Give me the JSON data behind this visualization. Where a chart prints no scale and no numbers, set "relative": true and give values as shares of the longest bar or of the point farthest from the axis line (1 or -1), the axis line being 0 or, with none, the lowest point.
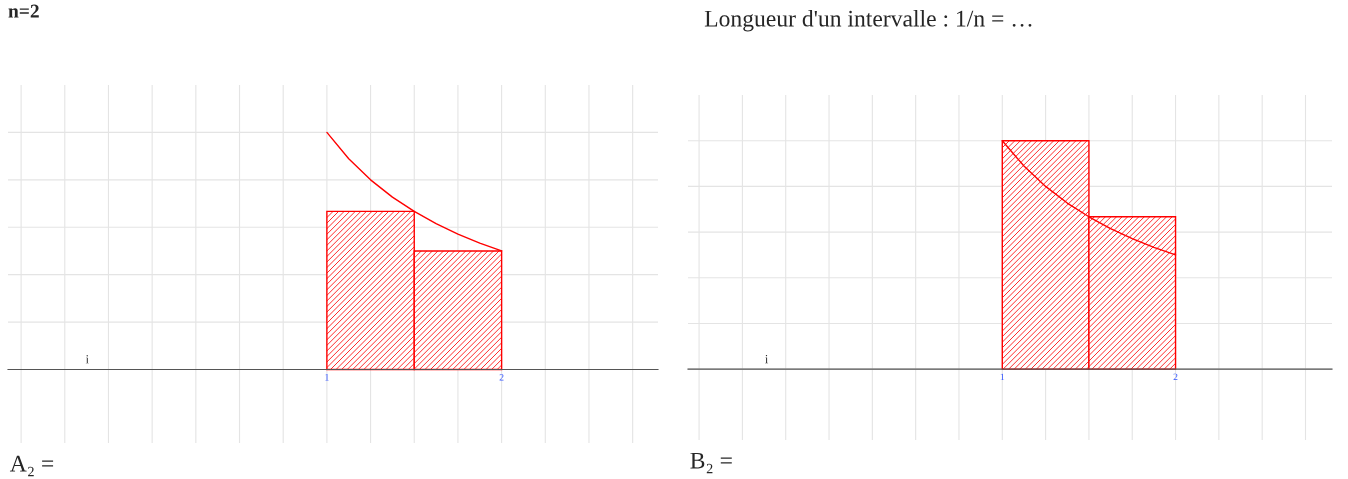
{
  "chart_data": [
    {
      "type": "bar",
      "title": "n=2",
      "relative": true,
      "grid": true,
      "legend": false,
      "xlim": [
        -0.825,
        2.895
      ],
      "xticks": [
        {
          "value": -0.75,
          "label": null
        },
        {
          "value": -0.5,
          "label": null
        },
        {
          "value": -0.25,
          "label": null
        },
        {
          "value": 0,
          "label": null
        },
        {
          "value": 0.25,
          "label": null
        },
        {
          "value": 0.5,
          "label": null
        },
        {
          "value": 0.75,
          "label": null
        },
        1,
        {
          "value": 1.25,
          "label": null
        },
        {
          "value": 1.5,
          "label": null
        },
        {
          "value": 1.75,
          "label": null
        },
        2,
        {
          "value": 2.25,
          "label": null
        },
        {
          "value": 2.5,
          "label": null
        },
        {
          "value": 2.75,
          "label": null
        }
      ],
      "series": [
        {
          "color": "#ff0000",
          "x": [
            1.25,
            1.75
          ],
          "values": [
            0.667,
            0.5
          ]
        },
        {
          "type": "line",
          "color": "#ff0000",
          "x": [
            1,
            1.125,
            1.25,
            1.375,
            1.5,
            1.625,
            1.75,
            1.875,
            2
          ],
          "values": [
            1,
            0.889,
            0.8,
            0.727,
            0.667,
            0.615,
            0.571,
            0.533,
            0.5
          ]
        }
      ],
      "annotations": [
        "i",
        "A₂ ="
      ]
    },
    {
      "type": "bar",
      "title": "Longueur d'un intervalle : 1/n = …",
      "relative": true,
      "grid": true,
      "legend": false,
      "xlim": [
        -0.814,
        2.903
      ],
      "xticks": [
        {
          "value": -0.75,
          "label": null
        },
        {
          "value": -0.5,
          "label": null
        },
        {
          "value": -0.25,
          "label": null
        },
        {
          "value": 0,
          "label": null
        },
        {
          "value": 0.25,
          "label": null
        },
        {
          "value": 0.5,
          "label": null
        },
        {
          "value": 0.75,
          "label": null
        },
        1,
        {
          "value": 1.25,
          "label": null
        },
        {
          "value": 1.5,
          "label": null
        },
        {
          "value": 1.75,
          "label": null
        },
        2,
        {
          "value": 2.25,
          "label": null
        },
        {
          "value": 2.5,
          "label": null
        },
        {
          "value": 2.75,
          "label": null
        }
      ],
      "series": [
        {
          "color": "#ff0000",
          "x": [
            1.25,
            1.75
          ],
          "values": [
            1,
            0.667
          ]
        },
        {
          "type": "line",
          "color": "#ff0000",
          "x": [
            1,
            1.125,
            1.25,
            1.375,
            1.5,
            1.625,
            1.75,
            1.875,
            2
          ],
          "values": [
            1,
            0.889,
            0.8,
            0.727,
            0.667,
            0.615,
            0.571,
            0.533,
            0.5
          ]
        }
      ],
      "annotations": [
        "i",
        "B₂ ="
      ]
    }
  ]
}
